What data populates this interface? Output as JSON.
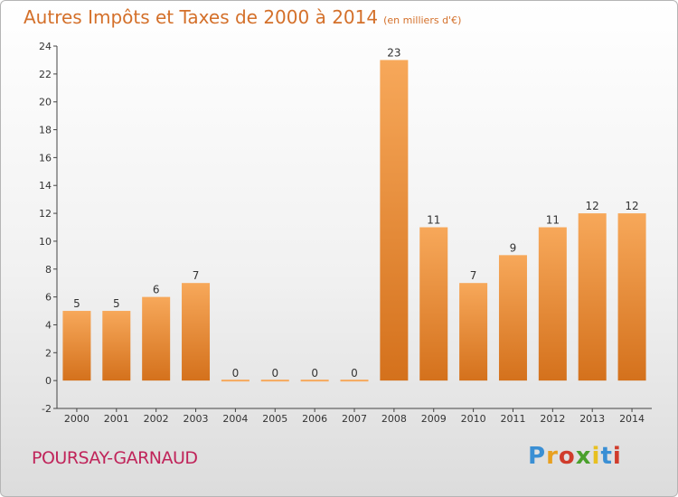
{
  "title": "Autres Impôts et Taxes de 2000 à 2014",
  "subtitle": "(en milliers d'€)",
  "commune": "POURSAY-GARNAUD",
  "logo": {
    "text": "Proxiti",
    "letter_colors": [
      "#3a8fd4",
      "#e8a020",
      "#d03c2c",
      "#4aa02c",
      "#e8c020",
      "#3a8fd4",
      "#d03c2c"
    ]
  },
  "colors": {
    "bar_top": "#f7a85a",
    "bar_bottom": "#d4711c",
    "title": "#d4702a",
    "commune": "#c0245a"
  },
  "chart_data": {
    "type": "bar",
    "categories": [
      "2000",
      "2001",
      "2002",
      "2003",
      "2004",
      "2005",
      "2006",
      "2007",
      "2008",
      "2009",
      "2010",
      "2011",
      "2012",
      "2013",
      "2014"
    ],
    "values": [
      5,
      5,
      6,
      7,
      0,
      0,
      0,
      0,
      23,
      11,
      7,
      9,
      11,
      12,
      12
    ],
    "title": "Autres Impôts et Taxes de 2000 à 2014",
    "subtitle": "(en milliers d'€)",
    "xlabel": "",
    "ylabel": "",
    "ylim": [
      -2,
      24
    ],
    "yticks": [
      -2,
      0,
      2,
      4,
      6,
      8,
      10,
      12,
      14,
      16,
      18,
      20,
      22,
      24
    ],
    "grid": false,
    "legend": "none"
  }
}
